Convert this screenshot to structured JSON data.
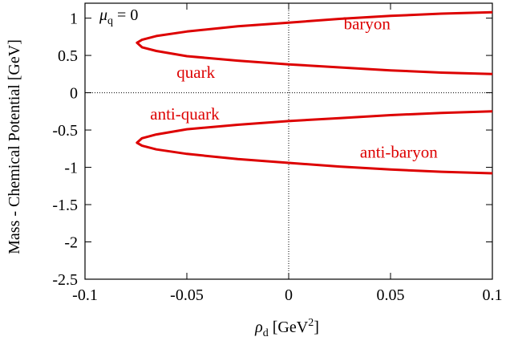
{
  "chart_data": {
    "type": "line",
    "xlabel_main": "ρ",
    "xlabel_sub": "d",
    "xlabel_units_pre": " [GeV",
    "xlabel_units_sup": "2",
    "xlabel_units_post": "]",
    "ylabel": "Mass - Chemical Potential [GeV]",
    "xlim": [
      -0.1,
      0.1
    ],
    "ylim": [
      -2.5,
      1.2
    ],
    "x_ticks": [
      -0.1,
      -0.05,
      0,
      0.05,
      0.1
    ],
    "x_tick_labels": [
      "-0.1",
      "-0.05",
      "0",
      "0.05",
      "0.1"
    ],
    "y_ticks": [
      1,
      0.5,
      0,
      -0.5,
      -1,
      -1.5,
      -2,
      -2.5
    ],
    "y_tick_labels": [
      "1",
      "0.5",
      "0",
      "-0.5",
      "-1",
      "-1.5",
      "-2",
      "-2.5"
    ],
    "grid": false,
    "zero_lines": true,
    "color": "#dd0000",
    "panel_label_main": "μ",
    "panel_label_sub": "q",
    "panel_label_rest": " = 0",
    "series": [
      {
        "x": [
          0.1,
          0.075,
          0.05,
          0.025,
          0.0,
          -0.025,
          -0.05,
          -0.065,
          -0.072,
          -0.0745,
          -0.072,
          -0.065,
          -0.05,
          -0.025,
          0.0,
          0.025,
          0.05,
          0.075,
          0.1
        ],
        "y": [
          1.08,
          1.06,
          1.03,
          0.99,
          0.94,
          0.89,
          0.82,
          0.76,
          0.71,
          0.67,
          0.61,
          0.56,
          0.49,
          0.43,
          0.38,
          0.34,
          0.3,
          0.27,
          0.25
        ]
      },
      {
        "x": [
          0.1,
          0.075,
          0.05,
          0.025,
          0.0,
          -0.025,
          -0.05,
          -0.065,
          -0.072,
          -0.0745,
          -0.072,
          -0.065,
          -0.05,
          -0.025,
          0.0,
          0.025,
          0.05,
          0.075,
          0.1
        ],
        "y": [
          -0.25,
          -0.27,
          -0.3,
          -0.34,
          -0.38,
          -0.43,
          -0.49,
          -0.56,
          -0.61,
          -0.67,
          -0.71,
          -0.76,
          -0.82,
          -0.89,
          -0.94,
          -0.99,
          -1.03,
          -1.06,
          -1.08
        ]
      }
    ],
    "annotations": [
      {
        "text": "baryon",
        "x": 0.027,
        "y": 0.85
      },
      {
        "text": "quark",
        "x": -0.055,
        "y": 0.2
      },
      {
        "text": "anti-quark",
        "x": -0.068,
        "y": -0.36
      },
      {
        "text": "anti-baryon",
        "x": 0.035,
        "y": -0.87
      }
    ]
  }
}
